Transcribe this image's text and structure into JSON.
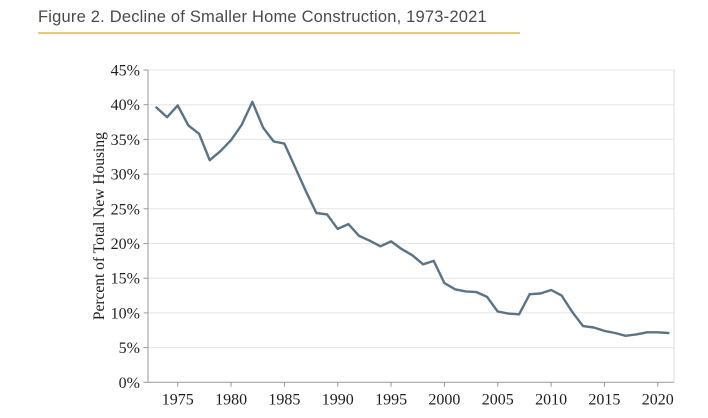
{
  "figure": {
    "title": "Figure 2. Decline of Smaller Home Construction, 1973-2021"
  },
  "colors": {
    "line": "#5a7386",
    "title_text": "#4a4a4a",
    "title_underline": "#eac97e",
    "grid": "#e5e5e5",
    "frame": "#dcdcdc",
    "spine": "#9a9a9a",
    "tick_label": "#1f1f1f"
  },
  "chart_data": {
    "type": "line",
    "title": "Figure 2. Decline of Smaller Home Construction, 1973-2021",
    "xlabel": "",
    "ylabel": "Percent of Total New Housing",
    "ylim": [
      0,
      45
    ],
    "xlim": [
      1973,
      2021
    ],
    "grid": true,
    "legend": false,
    "y_tick_values": [
      0,
      5,
      10,
      15,
      20,
      25,
      30,
      35,
      40,
      45
    ],
    "y_tick_labels": [
      "0%",
      "5%",
      "10%",
      "15%",
      "20%",
      "25%",
      "30%",
      "35%",
      "40%",
      "45%"
    ],
    "x_tick_values": [
      1975,
      1980,
      1985,
      1990,
      1995,
      2000,
      2005,
      2010,
      2015,
      2020
    ],
    "x_tick_labels": [
      "1975",
      "1980",
      "1985",
      "1990",
      "1995",
      "2000",
      "2005",
      "2010",
      "2015",
      "2020"
    ],
    "x": [
      1973,
      1974,
      1975,
      1976,
      1977,
      1978,
      1979,
      1980,
      1981,
      1982,
      1983,
      1984,
      1985,
      1986,
      1987,
      1988,
      1989,
      1990,
      1991,
      1992,
      1993,
      1994,
      1995,
      1996,
      1997,
      1998,
      1999,
      2000,
      2001,
      2002,
      2003,
      2004,
      2005,
      2006,
      2007,
      2008,
      2009,
      2010,
      2011,
      2012,
      2013,
      2014,
      2015,
      2016,
      2017,
      2018,
      2019,
      2020,
      2021
    ],
    "values": [
      39.6,
      38.2,
      39.9,
      37.0,
      35.8,
      32.0,
      33.3,
      34.9,
      37.1,
      40.4,
      36.7,
      34.7,
      34.4,
      31.0,
      27.6,
      24.4,
      24.2,
      22.1,
      22.8,
      21.1,
      20.4,
      19.6,
      20.3,
      19.2,
      18.3,
      17.0,
      17.5,
      14.3,
      13.4,
      13.1,
      13.0,
      12.3,
      10.2,
      9.9,
      9.8,
      12.7,
      12.8,
      13.3,
      12.5,
      10.1,
      8.1,
      7.9,
      7.4,
      7.1,
      6.7,
      6.9,
      7.2,
      7.2,
      7.1
    ]
  }
}
